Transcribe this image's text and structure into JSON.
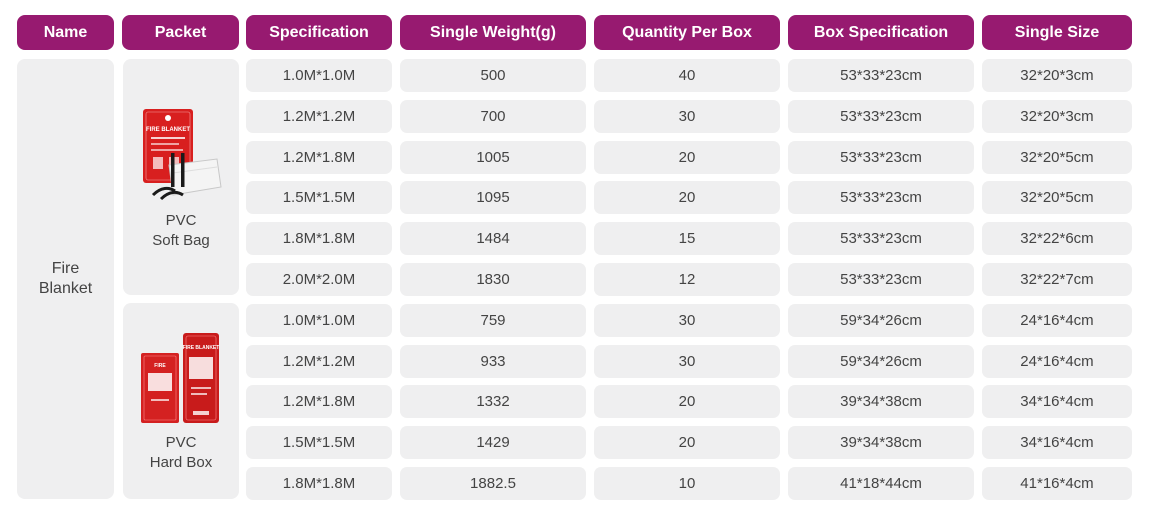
{
  "colors": {
    "header_bg": "#971a70",
    "cell_bg": "#efeff0",
    "text": "#444444"
  },
  "headers": [
    "Name",
    "Packet",
    "Specification",
    "Single Weight(g)",
    "Quantity Per Box",
    "Box Specification",
    "Single Size"
  ],
  "name": {
    "line1": "Fire",
    "line2": "Blanket"
  },
  "packets": [
    {
      "line1": "PVC",
      "line2": "Soft Bag",
      "image_icon": "fire-blanket-soft-bag-photo",
      "image_text": "FIRE BLANKET"
    },
    {
      "line1": "PVC",
      "line2": "Hard Box",
      "image_icon": "fire-blanket-hard-box-photo",
      "image_text": "FIRE BLANKET"
    }
  ],
  "rows": [
    {
      "spec": "1.0M*1.0M",
      "weight": "500",
      "qty": "40",
      "box": "53*33*23cm",
      "size": "32*20*3cm"
    },
    {
      "spec": "1.2M*1.2M",
      "weight": "700",
      "qty": "30",
      "box": "53*33*23cm",
      "size": "32*20*3cm"
    },
    {
      "spec": "1.2M*1.8M",
      "weight": "1005",
      "qty": "20",
      "box": "53*33*23cm",
      "size": "32*20*5cm"
    },
    {
      "spec": "1.5M*1.5M",
      "weight": "1095",
      "qty": "20",
      "box": "53*33*23cm",
      "size": "32*20*5cm"
    },
    {
      "spec": "1.8M*1.8M",
      "weight": "1484",
      "qty": "15",
      "box": "53*33*23cm",
      "size": "32*22*6cm"
    },
    {
      "spec": "2.0M*2.0M",
      "weight": "1830",
      "qty": "12",
      "box": "53*33*23cm",
      "size": "32*22*7cm"
    },
    {
      "spec": "1.0M*1.0M",
      "weight": "759",
      "qty": "30",
      "box": "59*34*26cm",
      "size": "24*16*4cm"
    },
    {
      "spec": "1.2M*1.2M",
      "weight": "933",
      "qty": "30",
      "box": "59*34*26cm",
      "size": "24*16*4cm"
    },
    {
      "spec": "1.2M*1.8M",
      "weight": "1332",
      "qty": "20",
      "box": "39*34*38cm",
      "size": "34*16*4cm"
    },
    {
      "spec": "1.5M*1.5M",
      "weight": "1429",
      "qty": "20",
      "box": "39*34*38cm",
      "size": "34*16*4cm"
    },
    {
      "spec": "1.8M*1.8M",
      "weight": "1882.5",
      "qty": "10",
      "box": "41*18*44cm",
      "size": "41*16*4cm"
    }
  ]
}
